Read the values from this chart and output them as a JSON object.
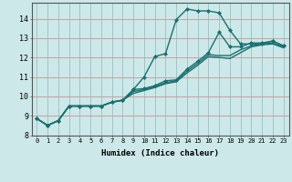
{
  "title": "",
  "xlabel": "Humidex (Indice chaleur)",
  "ylabel": "",
  "bg_color": "#cce8e8",
  "line_color": "#1a7070",
  "xlim": [
    -0.5,
    23.5
  ],
  "ylim": [
    8.0,
    14.8
  ],
  "yticks": [
    8,
    9,
    10,
    11,
    12,
    13,
    14
  ],
  "xticks": [
    0,
    1,
    2,
    3,
    4,
    5,
    6,
    7,
    8,
    9,
    10,
    11,
    12,
    13,
    14,
    15,
    16,
    17,
    18,
    19,
    20,
    21,
    22,
    23
  ],
  "lines": [
    {
      "x": [
        0,
        1,
        2,
        3,
        4,
        5,
        6,
        7,
        8,
        9,
        10,
        11,
        12,
        13,
        14,
        15,
        16,
        17,
        18,
        19,
        20,
        21,
        22,
        23
      ],
      "y": [
        8.85,
        8.5,
        8.75,
        9.5,
        9.5,
        9.5,
        9.5,
        9.7,
        9.8,
        10.35,
        11.0,
        12.05,
        12.2,
        13.95,
        14.5,
        14.4,
        14.4,
        14.3,
        13.4,
        12.7,
        12.7,
        12.7,
        12.85,
        12.6
      ],
      "marker": "D",
      "markersize": 2.0,
      "linewidth": 1.0
    },
    {
      "x": [
        0,
        1,
        2,
        3,
        4,
        5,
        6,
        7,
        8,
        9,
        10,
        11,
        12,
        13,
        14,
        15,
        16,
        17,
        18,
        19,
        20,
        21,
        22,
        23
      ],
      "y": [
        8.85,
        8.5,
        8.75,
        9.5,
        9.5,
        9.5,
        9.5,
        9.7,
        9.8,
        10.35,
        10.4,
        10.55,
        10.8,
        10.85,
        11.4,
        11.8,
        12.25,
        13.3,
        12.55,
        12.55,
        12.75,
        12.75,
        12.85,
        12.6
      ],
      "marker": "D",
      "markersize": 2.0,
      "linewidth": 1.0
    },
    {
      "x": [
        0,
        1,
        2,
        3,
        4,
        5,
        6,
        7,
        8,
        9,
        10,
        11,
        12,
        13,
        14,
        15,
        16,
        17,
        18,
        19,
        20,
        21,
        22,
        23
      ],
      "y": [
        8.85,
        8.5,
        8.75,
        9.5,
        9.5,
        9.5,
        9.5,
        9.7,
        9.8,
        10.25,
        10.35,
        10.5,
        10.7,
        10.8,
        11.3,
        11.7,
        12.15,
        12.1,
        12.1,
        12.4,
        12.6,
        12.7,
        12.75,
        12.55
      ],
      "marker": null,
      "markersize": 0,
      "linewidth": 1.0
    },
    {
      "x": [
        0,
        1,
        2,
        3,
        4,
        5,
        6,
        7,
        8,
        9,
        10,
        11,
        12,
        13,
        14,
        15,
        16,
        17,
        18,
        19,
        20,
        21,
        22,
        23
      ],
      "y": [
        8.85,
        8.5,
        8.75,
        9.5,
        9.5,
        9.5,
        9.5,
        9.7,
        9.8,
        10.15,
        10.3,
        10.45,
        10.65,
        10.75,
        11.2,
        11.6,
        12.05,
        12.0,
        11.95,
        12.25,
        12.55,
        12.65,
        12.7,
        12.5
      ],
      "marker": null,
      "markersize": 0,
      "linewidth": 1.0
    }
  ]
}
